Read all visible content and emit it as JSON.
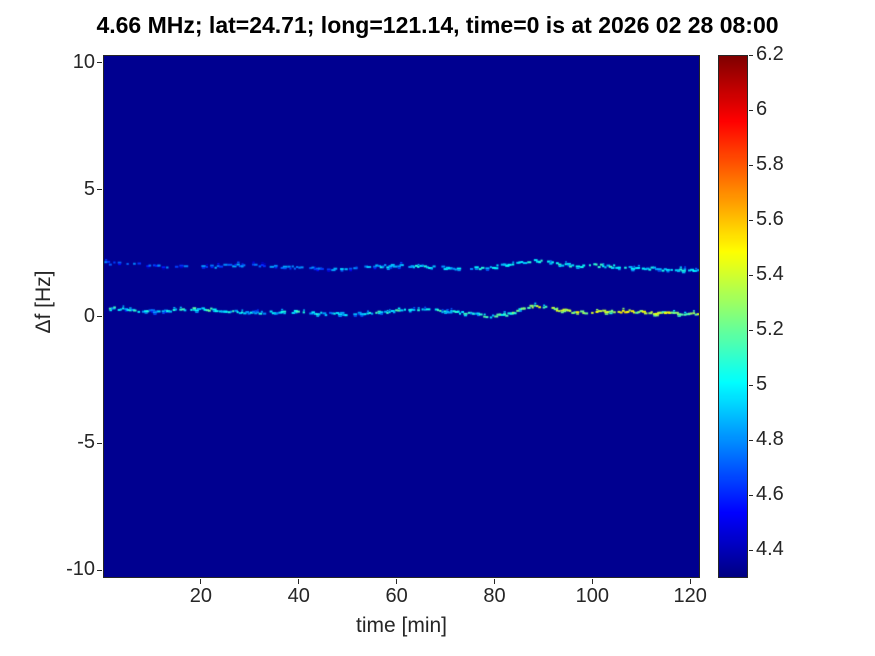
{
  "chart_data": {
    "type": "heatmap",
    "title": "4.66 MHz;  lat=24.71; long=121.14, time=0 is at 2026 02 28 08:00",
    "xlabel": "time [min]",
    "ylabel": "Δf [Hz]",
    "xlim": [
      0,
      122
    ],
    "ylim": [
      -10.3,
      10.3
    ],
    "xticks": [
      20,
      40,
      60,
      80,
      100,
      120
    ],
    "yticks": [
      -10,
      -5,
      0,
      5,
      10
    ],
    "grid": false,
    "legend": "none",
    "colormap": "jet",
    "colorbar": {
      "min": 4.3,
      "max": 6.2,
      "ticks": [
        4.4,
        4.6,
        4.8,
        5,
        5.2,
        5.4,
        5.6,
        5.8,
        6,
        6.2
      ]
    },
    "background_value": 4.33,
    "traces": [
      {
        "name": "main-ridge-near-0Hz",
        "gap_prob_start": 0.25,
        "gap_prob_end": 0.08,
        "df_jitter": 0.05,
        "v_jitter": 0.18,
        "double_prob": 0.3,
        "points": [
          [
            0,
            0.35,
            5.0
          ],
          [
            5,
            0.25,
            4.95
          ],
          [
            10,
            0.2,
            4.9
          ],
          [
            15,
            0.25,
            5.0
          ],
          [
            20,
            0.3,
            5.05
          ],
          [
            25,
            0.2,
            5.0
          ],
          [
            30,
            0.15,
            4.9
          ],
          [
            35,
            0.15,
            4.95
          ],
          [
            40,
            0.2,
            5.0
          ],
          [
            45,
            0.1,
            4.9
          ],
          [
            50,
            0.1,
            4.9
          ],
          [
            55,
            0.15,
            5.0
          ],
          [
            60,
            0.2,
            5.05
          ],
          [
            65,
            0.3,
            5.05
          ],
          [
            70,
            0.2,
            5.0
          ],
          [
            75,
            0.1,
            5.0
          ],
          [
            79,
            0.0,
            5.05
          ],
          [
            83,
            0.1,
            5.15
          ],
          [
            87,
            0.4,
            5.25
          ],
          [
            90,
            0.35,
            5.3
          ],
          [
            93,
            0.25,
            5.35
          ],
          [
            97,
            0.15,
            5.35
          ],
          [
            102,
            0.2,
            5.4
          ],
          [
            107,
            0.2,
            5.35
          ],
          [
            112,
            0.15,
            5.3
          ],
          [
            117,
            0.1,
            5.3
          ],
          [
            122,
            0.1,
            5.25
          ]
        ]
      },
      {
        "name": "secondary-ridge-near-2Hz",
        "gap_prob_start": 0.55,
        "gap_prob_end": 0.18,
        "df_jitter": 0.06,
        "v_jitter": 0.15,
        "double_prob": 0.25,
        "points": [
          [
            0,
            2.1,
            4.75
          ],
          [
            5,
            2.05,
            4.7
          ],
          [
            10,
            2.0,
            4.7
          ],
          [
            15,
            1.95,
            4.75
          ],
          [
            20,
            1.95,
            4.7
          ],
          [
            25,
            2.0,
            4.75
          ],
          [
            30,
            2.0,
            4.7
          ],
          [
            35,
            1.95,
            4.75
          ],
          [
            40,
            1.9,
            4.8
          ],
          [
            45,
            1.85,
            4.75
          ],
          [
            50,
            1.9,
            4.8
          ],
          [
            55,
            1.95,
            4.9
          ],
          [
            60,
            2.0,
            4.9
          ],
          [
            65,
            1.95,
            4.95
          ],
          [
            70,
            1.9,
            4.9
          ],
          [
            75,
            1.9,
            4.9
          ],
          [
            80,
            1.95,
            5.0
          ],
          [
            85,
            2.1,
            5.05
          ],
          [
            88,
            2.2,
            5.05
          ],
          [
            92,
            2.1,
            5.0
          ],
          [
            96,
            2.0,
            5.0
          ],
          [
            100,
            2.0,
            5.05
          ],
          [
            105,
            1.95,
            5.0
          ],
          [
            110,
            1.9,
            4.95
          ],
          [
            115,
            1.85,
            4.95
          ],
          [
            120,
            1.8,
            4.95
          ],
          [
            122,
            1.8,
            4.9
          ]
        ]
      }
    ]
  },
  "colors": {
    "background_navy": "#00008f",
    "axes_line": "#262626",
    "title_text": "#000000"
  }
}
